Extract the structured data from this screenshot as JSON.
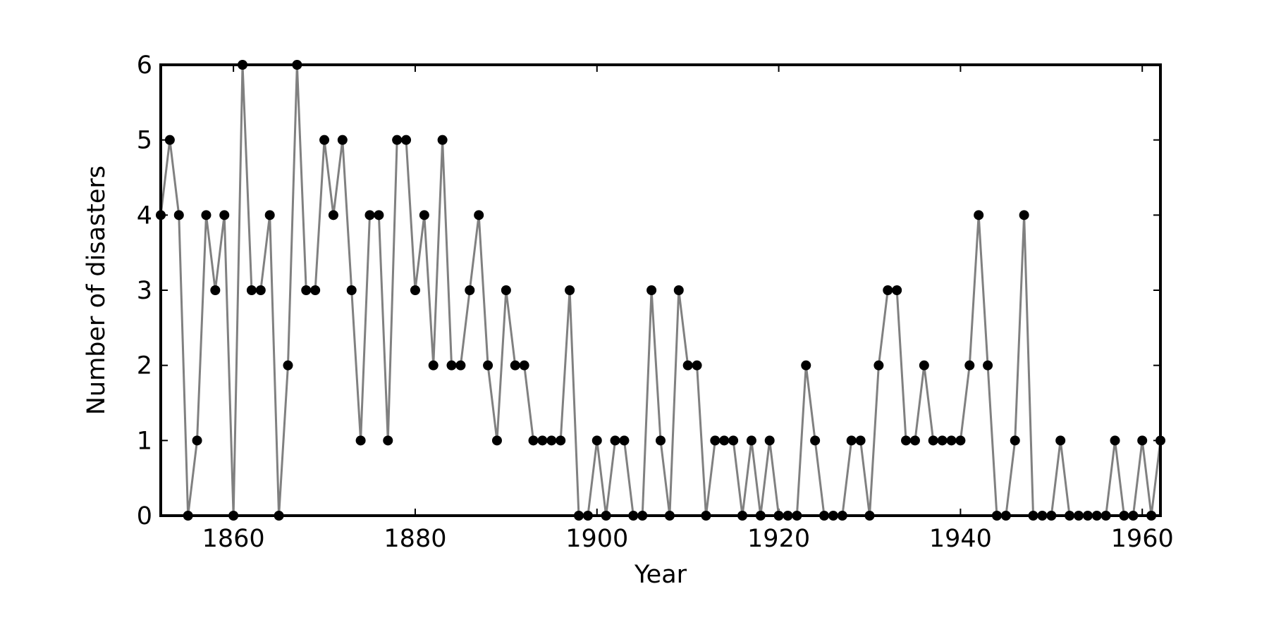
{
  "chart_data": {
    "type": "line",
    "title": "",
    "xlabel": "Year",
    "ylabel": "Number of disasters",
    "xlim": [
      1852,
      1962
    ],
    "ylim": [
      0,
      6
    ],
    "x_ticks": [
      1860,
      1880,
      1900,
      1920,
      1940,
      1960
    ],
    "y_ticks": [
      0,
      1,
      2,
      3,
      4,
      5,
      6
    ],
    "x_tick_labels": [
      "1860",
      "1880",
      "1900",
      "1920",
      "1940",
      "1960"
    ],
    "y_tick_labels": [
      "0",
      "1",
      "2",
      "3",
      "4",
      "5",
      "6"
    ],
    "grid": false,
    "legend": "none",
    "line_color": "#808080",
    "marker_color": "#000000",
    "series": [
      {
        "x": [
          1852,
          1853,
          1854,
          1855,
          1856,
          1857,
          1858,
          1859,
          1860,
          1861,
          1862,
          1863,
          1864,
          1865,
          1866,
          1867,
          1868,
          1869,
          1870,
          1871,
          1872,
          1873,
          1874,
          1875,
          1876,
          1877,
          1878,
          1879,
          1880,
          1881,
          1882,
          1883,
          1884,
          1885,
          1886,
          1887,
          1888,
          1889,
          1890,
          1891,
          1892,
          1893,
          1894,
          1895,
          1896,
          1897,
          1898,
          1899,
          1900,
          1901,
          1902,
          1903,
          1904,
          1905,
          1906,
          1907,
          1908,
          1909,
          1910,
          1911,
          1912,
          1913,
          1914,
          1915,
          1916,
          1917,
          1918,
          1919,
          1920,
          1921,
          1922,
          1923,
          1924,
          1925,
          1926,
          1927,
          1928,
          1929,
          1930,
          1931,
          1932,
          1933,
          1934,
          1935,
          1936,
          1937,
          1938,
          1939,
          1940,
          1941,
          1942,
          1943,
          1944,
          1945,
          1946,
          1947,
          1948,
          1949,
          1950,
          1951,
          1952,
          1953,
          1954,
          1955,
          1956,
          1957,
          1958,
          1959,
          1960,
          1961,
          1962
        ],
        "values": [
          4,
          5,
          4,
          0,
          1,
          4,
          3,
          4,
          0,
          6,
          3,
          3,
          4,
          0,
          2,
          6,
          3,
          3,
          5,
          4,
          5,
          3,
          1,
          4,
          4,
          1,
          5,
          5,
          3,
          4,
          2,
          5,
          2,
          2,
          3,
          4,
          2,
          1,
          3,
          2,
          2,
          1,
          1,
          1,
          1,
          3,
          0,
          0,
          1,
          0,
          1,
          1,
          0,
          0,
          3,
          1,
          0,
          3,
          2,
          2,
          0,
          1,
          1,
          1,
          0,
          1,
          0,
          1,
          0,
          0,
          0,
          2,
          1,
          0,
          0,
          0,
          1,
          1,
          0,
          2,
          3,
          3,
          1,
          1,
          2,
          1,
          1,
          1,
          1,
          2,
          4,
          2,
          0,
          0,
          1,
          4,
          0,
          0,
          0,
          1,
          0,
          0,
          0,
          0,
          0,
          1,
          0,
          0,
          1,
          0,
          1
        ]
      }
    ]
  }
}
